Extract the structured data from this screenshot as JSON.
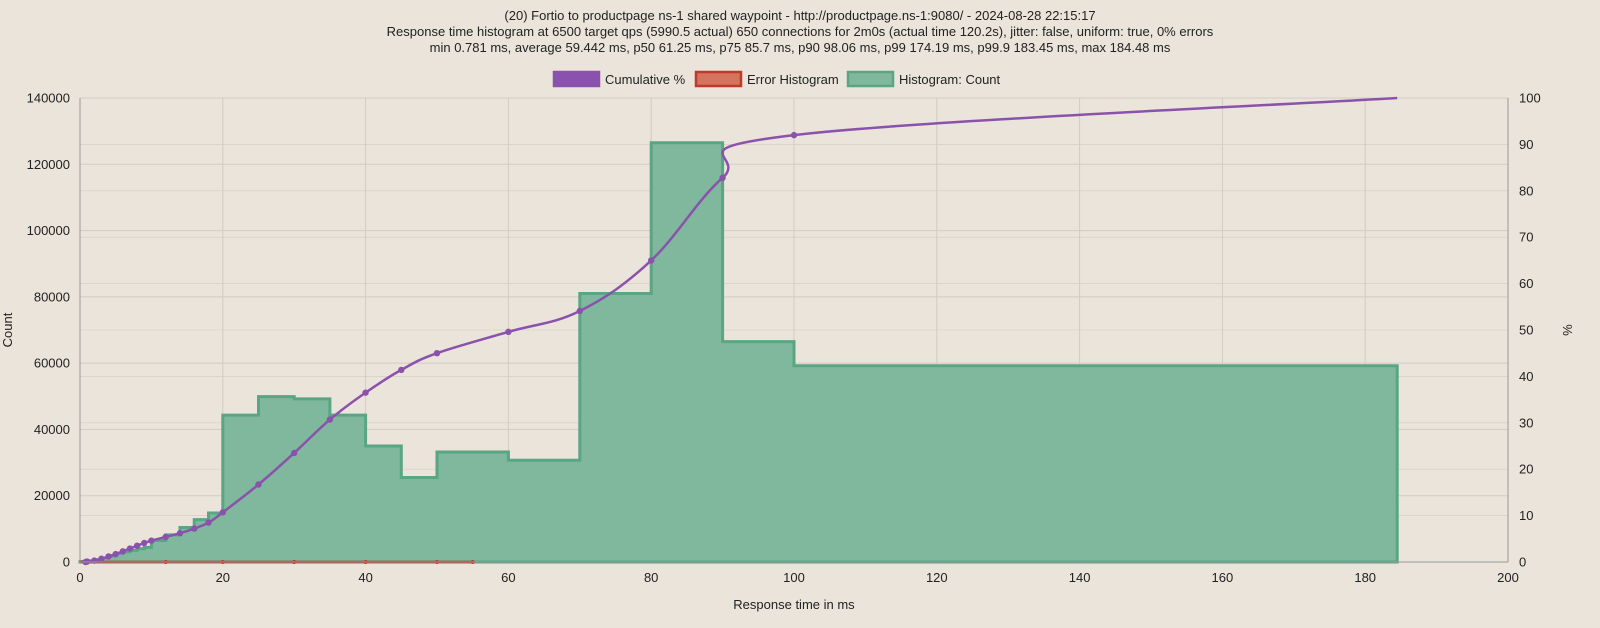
{
  "colors": {
    "background": "#ebe4da",
    "grid": "#d3cbc1",
    "cumulative_line": "#8a52ad",
    "cumulative_fill": "#8a52ad",
    "histogram_fill": "#7fb89c",
    "histogram_stroke": "#5aa584",
    "error_fill": "#d4735e",
    "error_stroke": "#c0392b",
    "axis_text": "#222222"
  },
  "chart_data": {
    "type": "histogram-with-cumulative-line",
    "title": [
      "(20) Fortio to productpage ns-1 shared waypoint - http://productpage.ns-1:9080/ - 2024-08-28 22:15:17",
      "Response time histogram at 6500 target qps (5990.5 actual) 650 connections for 2m0s (actual time 120.2s), jitter: false, uniform: true, 0% errors",
      "min 0.781 ms, average 59.442 ms, p50 61.25 ms, p75 85.7 ms, p90 98.06 ms, p99 174.19 ms, p99.9 183.45 ms, max 184.48 ms"
    ],
    "xlabel": "Response time in ms",
    "ylabel": "Count",
    "y2label": "%",
    "xlim": [
      0,
      200
    ],
    "ylim": [
      0,
      140000
    ],
    "y2lim": [
      0,
      100
    ],
    "xticks": [
      0,
      20,
      40,
      60,
      80,
      100,
      120,
      140,
      160,
      180,
      200
    ],
    "yticks": [
      0,
      20000,
      40000,
      60000,
      80000,
      100000,
      120000,
      140000
    ],
    "y2ticks": [
      0,
      10,
      20,
      30,
      40,
      50,
      60,
      70,
      80,
      90,
      100
    ],
    "grid": true,
    "legend_position": "top-center",
    "legend": [
      {
        "name": "Cumulative %",
        "color_key": "cumulative_line"
      },
      {
        "name": "Error Histogram",
        "color_key": "error_fill"
      },
      {
        "name": "Histogram: Count",
        "color_key": "histogram_fill"
      }
    ],
    "histogram": {
      "name": "Histogram: Count",
      "bins": [
        {
          "start": 0,
          "end": 1,
          "count": 150
        },
        {
          "start": 1,
          "end": 2,
          "count": 350
        },
        {
          "start": 2,
          "end": 3,
          "count": 700
        },
        {
          "start": 3,
          "end": 4,
          "count": 1200
        },
        {
          "start": 4,
          "end": 5,
          "count": 1800
        },
        {
          "start": 5,
          "end": 6,
          "count": 2600
        },
        {
          "start": 6,
          "end": 7,
          "count": 3100
        },
        {
          "start": 7,
          "end": 8,
          "count": 3500
        },
        {
          "start": 8,
          "end": 9,
          "count": 4000
        },
        {
          "start": 9,
          "end": 10,
          "count": 4400
        },
        {
          "start": 10,
          "end": 12,
          "count": 6500
        },
        {
          "start": 12,
          "end": 14,
          "count": 8200
        },
        {
          "start": 14,
          "end": 16,
          "count": 10400
        },
        {
          "start": 16,
          "end": 18,
          "count": 12800
        },
        {
          "start": 18,
          "end": 20,
          "count": 14800
        },
        {
          "start": 20,
          "end": 25,
          "count": 44300
        },
        {
          "start": 25,
          "end": 30,
          "count": 49900
        },
        {
          "start": 30,
          "end": 35,
          "count": 49200
        },
        {
          "start": 35,
          "end": 40,
          "count": 44300
        },
        {
          "start": 40,
          "end": 45,
          "count": 35000
        },
        {
          "start": 45,
          "end": 50,
          "count": 25500
        },
        {
          "start": 50,
          "end": 60,
          "count": 33200
        },
        {
          "start": 60,
          "end": 70,
          "count": 30700
        },
        {
          "start": 70,
          "end": 80,
          "count": 81000
        },
        {
          "start": 80,
          "end": 90,
          "count": 126500
        },
        {
          "start": 90,
          "end": 100,
          "count": 66500
        },
        {
          "start": 100,
          "end": 184.48,
          "count": 59200
        }
      ]
    },
    "error_histogram": {
      "name": "Error Histogram",
      "x": [
        0,
        12,
        20,
        30,
        40,
        50,
        55
      ],
      "values": [
        0,
        0,
        0,
        0,
        0,
        0,
        0
      ]
    },
    "cumulative": {
      "name": "Cumulative %",
      "x": [
        0.78,
        1,
        2,
        3,
        4,
        5,
        6,
        7,
        8,
        9,
        10,
        12,
        14,
        16,
        18,
        20,
        25,
        30,
        35,
        40,
        45,
        50,
        60,
        70,
        80,
        90,
        100,
        184.48
      ],
      "y": [
        0,
        0.1,
        0.3,
        0.7,
        1.2,
        1.7,
        2.3,
        2.9,
        3.5,
        4.1,
        4.6,
        5.4,
        6.2,
        7.2,
        8.5,
        10.7,
        16.7,
        23.5,
        30.7,
        36.5,
        41.4,
        45.0,
        49.6,
        54.1,
        65.0,
        82.8,
        92.0,
        100
      ]
    }
  }
}
